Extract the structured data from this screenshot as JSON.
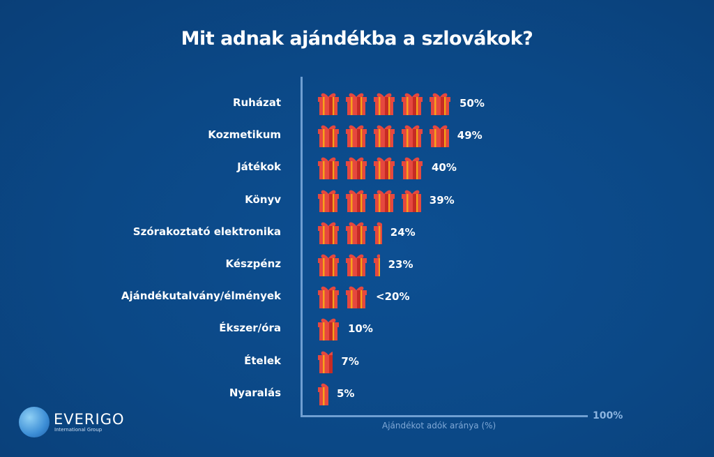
{
  "title": "Mit adnak ajándékba a szlovákok?",
  "logo": {
    "name": "EVERIGO",
    "subtitle": "International Group"
  },
  "chart_data": {
    "type": "bar",
    "title": "Mit adnak ajándékba a szlovákok?",
    "xlabel": "Ajándékot adók aránya (%)",
    "axis_max_label": "100%",
    "xlim": [
      0,
      100
    ],
    "unit_per_icon": 10,
    "categories": [
      "Ruházat",
      "Kozmetikum",
      "Játékok",
      "Könyv",
      "Szórakoztató elektronika",
      "Készpénz",
      "Ajándékutalvány/élmények",
      "Ékszer/óra",
      "Ételek",
      "Nyaralás"
    ],
    "values": [
      50,
      49,
      40,
      39,
      24,
      23,
      20,
      10,
      7,
      5
    ],
    "labels": [
      "50%",
      "49%",
      "40%",
      "39%",
      "24%",
      "23%",
      "<20%",
      "10%",
      "7%",
      "5%"
    ],
    "colors": {
      "gift": "#e5483f",
      "gift_dark": "#c62b24",
      "ribbon": "#f7a21b",
      "axis": "#6f9fd2"
    }
  }
}
